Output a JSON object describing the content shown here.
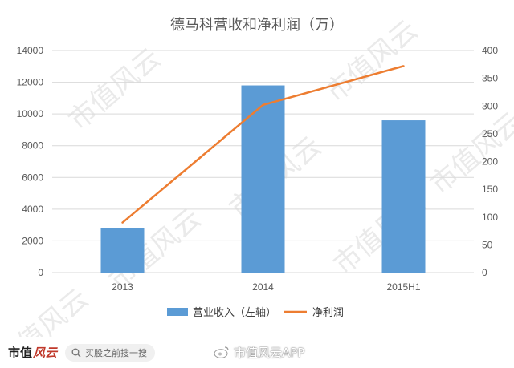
{
  "chart_data": {
    "type": "bar",
    "title": "德马科营收和净利润（万）",
    "categories": [
      "2013",
      "2014",
      "2015H1"
    ],
    "series": [
      {
        "name": "营业收入（左轴）",
        "type": "bar",
        "axis": "left",
        "color": "#5b9bd5",
        "values": [
          2800,
          11800,
          9600
        ]
      },
      {
        "name": "净利润",
        "type": "line",
        "axis": "right",
        "color": "#ed7d31",
        "values": [
          90,
          302,
          372
        ]
      }
    ],
    "y_left": {
      "min": 0,
      "max": 14000,
      "step": 2000,
      "ticks": [
        "0",
        "2000",
        "4000",
        "6000",
        "8000",
        "10000",
        "12000",
        "14000"
      ]
    },
    "y_right": {
      "min": 0,
      "max": 400,
      "step": 50,
      "ticks": [
        "0",
        "50",
        "100",
        "150",
        "200",
        "250",
        "300",
        "350",
        "400"
      ]
    },
    "grid": true,
    "legend_position": "bottom"
  },
  "watermark": {
    "text": "市值风云"
  },
  "footer": {
    "logo_text": "市值",
    "logo_accent": "风云",
    "search_placeholder": "买股之前搜一搜",
    "weibo_text": "市值风云APP"
  },
  "colors": {
    "grid": "#d9d9d9",
    "axis_text": "#595959"
  }
}
